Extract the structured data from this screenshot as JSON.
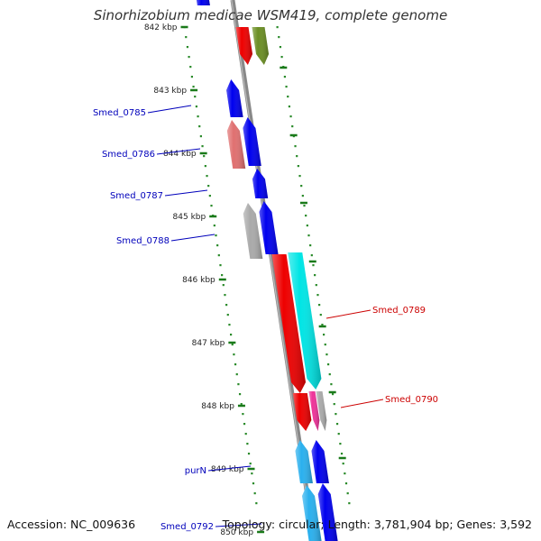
{
  "title": "Sinorhizobium medicae WSM419, complete genome",
  "footer": {
    "accession": "Accession: NC_009636",
    "summary": "Topology: circular; Length: 3,781,904 bp; Genes: 3,592"
  },
  "colors": {
    "backbone": "#888888",
    "tick": "#1a7a1a",
    "dots": "#2a8a2a",
    "label_left": "#0000bb",
    "label_right": "#cc0000"
  },
  "kbp_markers": [
    {
      "label": "842 kbp"
    },
    {
      "label": "843 kbp"
    },
    {
      "label": "844 kbp"
    },
    {
      "label": "845 kbp"
    },
    {
      "label": "846 kbp"
    },
    {
      "label": "847 kbp"
    },
    {
      "label": "848 kbp"
    },
    {
      "label": "849 kbp"
    },
    {
      "label": "850 kbp"
    }
  ],
  "gene_labels": [
    {
      "text": "Smed_0785",
      "side": "left"
    },
    {
      "text": "Smed_0786",
      "side": "left"
    },
    {
      "text": "Smed_0787",
      "side": "left"
    },
    {
      "text": "Smed_0788",
      "side": "left"
    },
    {
      "text": "Smed_0789",
      "side": "right"
    },
    {
      "text": "Smed_0790",
      "side": "right"
    },
    {
      "text": "purN",
      "side": "left"
    },
    {
      "text": "Smed_0792",
      "side": "left"
    }
  ],
  "genes": [
    {
      "name": "gene-top-cut",
      "strand": "minus",
      "color": "#0000ee"
    },
    {
      "name": "gene-red-top",
      "strand": "plus",
      "color": "#ee0000"
    },
    {
      "name": "gene-olive-top",
      "strand": "plus",
      "color": "#6b8e23"
    },
    {
      "name": "gene-smed-0785",
      "strand": "minus",
      "color": "#0000ee"
    },
    {
      "name": "gene-smed-0786",
      "strand": "minus",
      "color": "#0000ee"
    },
    {
      "name": "gene-pink-0786",
      "strand": "minus",
      "color": "#e07070"
    },
    {
      "name": "gene-smed-0787",
      "strand": "minus",
      "color": "#0000ee"
    },
    {
      "name": "gene-smed-0788",
      "strand": "minus",
      "color": "#0000ee"
    },
    {
      "name": "gene-gray-0788",
      "strand": "minus",
      "color": "#aaaaaa"
    },
    {
      "name": "gene-smed-0789-red",
      "strand": "plus",
      "color": "#ee0000"
    },
    {
      "name": "gene-smed-0789-cyan",
      "strand": "plus",
      "color": "#00e5e5"
    },
    {
      "name": "gene-smed-0790-red",
      "strand": "plus",
      "color": "#ee0000"
    },
    {
      "name": "gene-smed-0790-magenta",
      "strand": "plus",
      "color": "#ee3399"
    },
    {
      "name": "gene-smed-0790-gray",
      "strand": "plus",
      "color": "#aaaaaa"
    },
    {
      "name": "gene-purn-cyan",
      "strand": "minus",
      "color": "#2ab0ee"
    },
    {
      "name": "gene-purn-blue",
      "strand": "minus",
      "color": "#0000ee"
    },
    {
      "name": "gene-smed-0792-cyan",
      "strand": "minus",
      "color": "#2ab0ee"
    },
    {
      "name": "gene-smed-0792-blue",
      "strand": "minus",
      "color": "#0000ee"
    }
  ]
}
